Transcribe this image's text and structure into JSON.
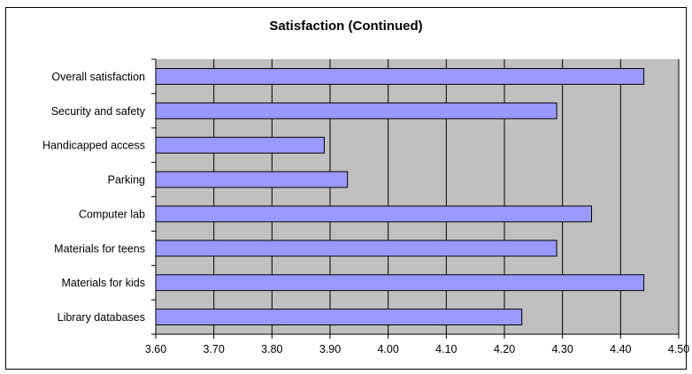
{
  "chart_data": {
    "type": "bar",
    "orientation": "horizontal",
    "title": "Satisfaction (Continued)",
    "xlabel": "",
    "ylabel": "",
    "categories": [
      "Overall satisfaction",
      "Security and safety",
      "Handicapped access",
      "Parking",
      "Computer lab",
      "Materials for teens",
      "Materials for kids",
      "Library databases"
    ],
    "values": [
      4.44,
      4.29,
      3.89,
      3.93,
      4.35,
      4.29,
      4.44,
      4.23
    ],
    "xlim": [
      3.6,
      4.5
    ],
    "x_ticks": [
      "3.60",
      "3.70",
      "3.80",
      "3.90",
      "4.00",
      "4.10",
      "4.20",
      "4.30",
      "4.40",
      "4.50"
    ],
    "grid": "vertical",
    "legend": "none",
    "colors": {
      "bar_fill": "#9999ff",
      "bar_stroke": "#000000",
      "plot_background": "#c0c0c0",
      "gridline": "#000000"
    }
  }
}
